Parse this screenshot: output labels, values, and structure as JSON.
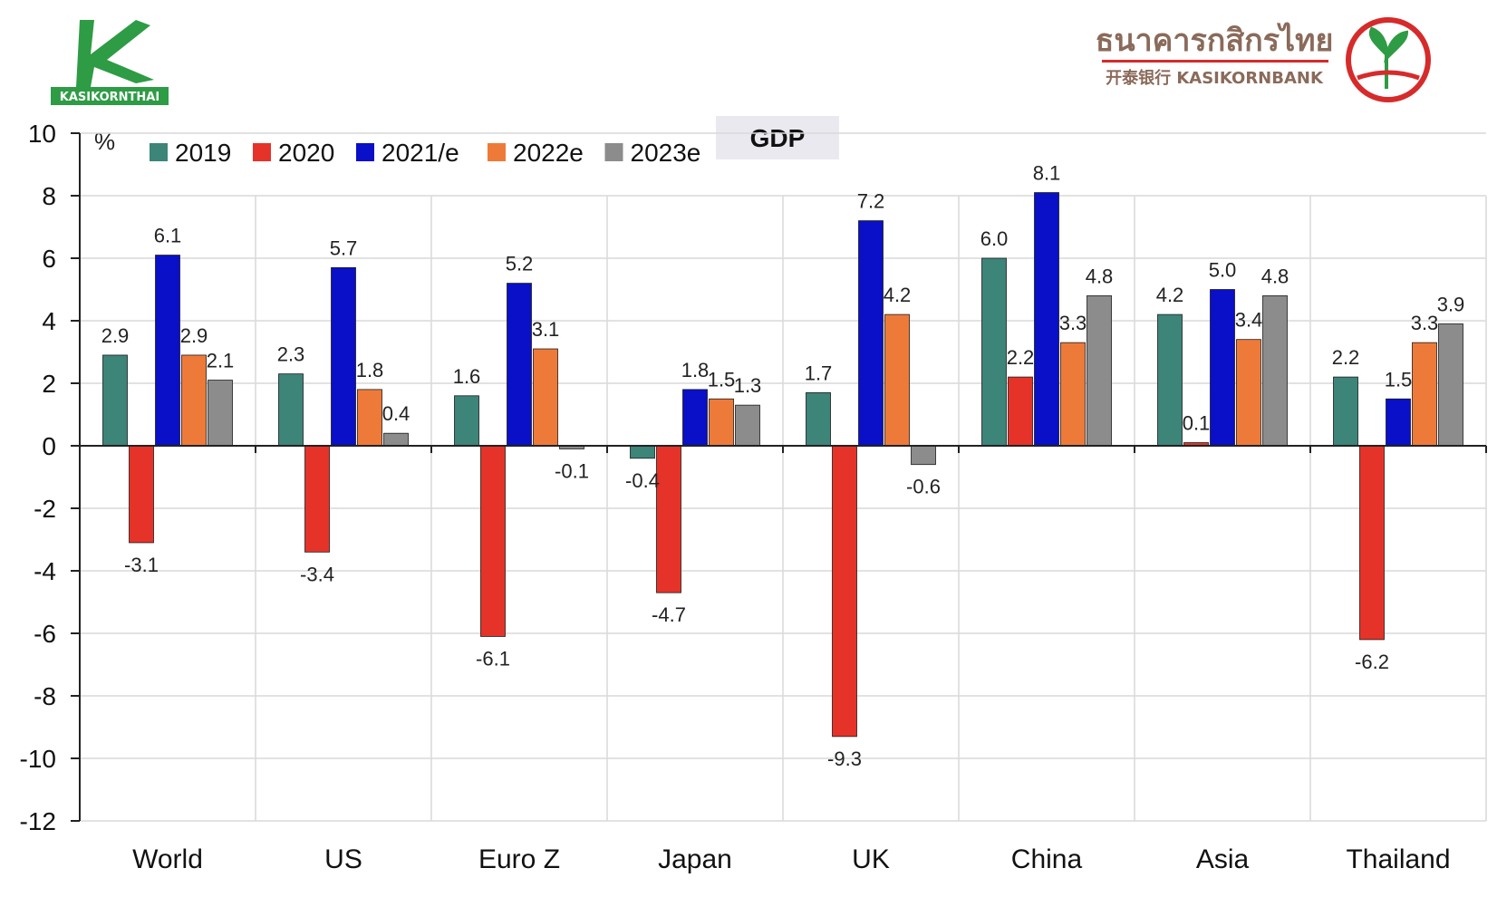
{
  "brand": {
    "left_logo_text": "KASIKORNTHAI",
    "right_logo_thai": "ธนาคารกสิกรไทย",
    "right_logo_sub": "开泰银行 KASIKORNBANK",
    "brand_green": "#2e9b45",
    "brand_red": "#d62b2b"
  },
  "chart_data": {
    "type": "bar",
    "title": "GDP",
    "ylabel": "%",
    "xlabel": "",
    "ylim": [
      -12,
      10
    ],
    "yticks": [
      10,
      8,
      6,
      4,
      2,
      0,
      -2,
      -4,
      -6,
      -8,
      -10,
      -12
    ],
    "grid": true,
    "legend_position": "top-left",
    "categories": [
      "World",
      "US",
      "Euro Z",
      "Japan",
      "UK",
      "China",
      "Asia",
      "Thailand"
    ],
    "series": [
      {
        "name": "2019",
        "color": "#3d8479",
        "values": [
          2.9,
          2.3,
          1.6,
          -0.4,
          1.7,
          6.0,
          4.2,
          2.2
        ]
      },
      {
        "name": "2020",
        "color": "#e53329",
        "values": [
          -3.1,
          -3.4,
          -6.1,
          -4.7,
          -9.3,
          2.2,
          0.1,
          -6.2
        ]
      },
      {
        "name": "2021/e",
        "color": "#0a0fc8",
        "values": [
          6.1,
          5.7,
          5.2,
          1.8,
          7.2,
          8.1,
          5.0,
          1.5
        ]
      },
      {
        "name": "2022e",
        "color": "#ee7a3a",
        "values": [
          2.9,
          1.8,
          3.1,
          1.5,
          4.2,
          3.3,
          3.4,
          3.3
        ]
      },
      {
        "name": "2023e",
        "color": "#8c8c8c",
        "values": [
          2.1,
          0.4,
          -0.1,
          1.3,
          -0.6,
          4.8,
          4.8,
          3.9
        ]
      }
    ],
    "data_labels": [
      [
        "2.9",
        "-3.1",
        "6.1",
        "2.9",
        "2.1"
      ],
      [
        "2.3",
        "-3.4",
        "5.7",
        "1.8",
        "0.4"
      ],
      [
        "1.6",
        "-6.1",
        "5.2",
        "3.1",
        "-0.1"
      ],
      [
        "-0.4",
        "-4.7",
        "1.8",
        "1.5",
        "1.3"
      ],
      [
        "1.7",
        "-9.3",
        "7.2",
        "4.2",
        "-0.6"
      ],
      [
        "6.0",
        "2.2",
        "8.1",
        "3.3",
        "4.8"
      ],
      [
        "4.2",
        "0.1",
        "5.0",
        "3.4",
        "4.8"
      ],
      [
        "2.2",
        "-6.2",
        "1.5",
        "3.3",
        "3.9"
      ]
    ]
  }
}
